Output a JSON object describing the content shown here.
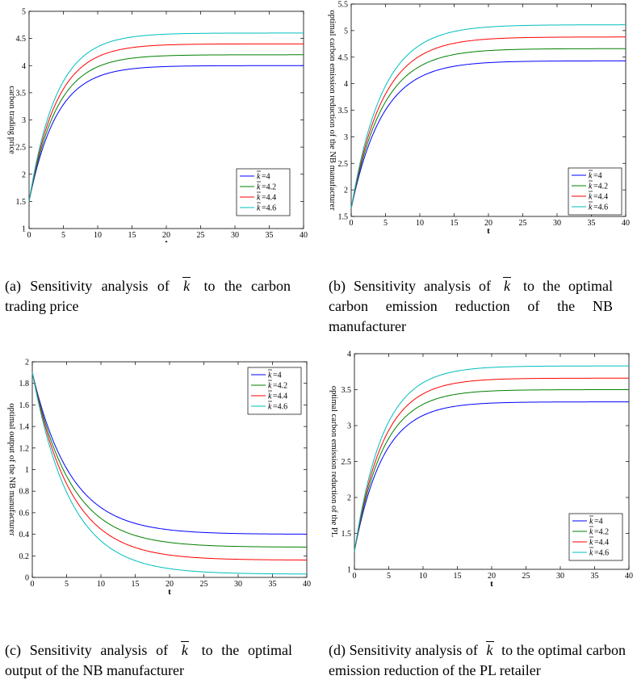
{
  "chart_data": [
    {
      "type": "line",
      "panel": "a",
      "title": "",
      "xlabel": "t",
      "ylabel": "carbon trading price",
      "xlim": [
        0,
        40
      ],
      "ylim": [
        1,
        5
      ],
      "xticks": [
        0,
        5,
        10,
        15,
        20,
        25,
        30,
        35,
        40
      ],
      "xtick_labels": [
        "0",
        "5",
        "10",
        "15",
        "20",
        "25",
        "30",
        "35",
        "40"
      ],
      "yticks": [
        1,
        1.5,
        2,
        2.5,
        3,
        3.5,
        4,
        4.5,
        5
      ],
      "ytick_labels": [
        "1",
        "1.5",
        "2",
        "2.5",
        "3",
        "3.5",
        "4",
        "4.5",
        "5"
      ],
      "legend_position": "bottom-right",
      "rate": 0.25,
      "series": [
        {
          "name": "=4",
          "color": "#0000ff",
          "start": 1.5,
          "end": 4.0
        },
        {
          "name": "=4.2",
          "color": "#008000",
          "start": 1.5,
          "end": 4.2
        },
        {
          "name": "=4.4",
          "color": "#ff0000",
          "start": 1.5,
          "end": 4.4
        },
        {
          "name": "=4.6",
          "color": "#00bfbf",
          "start": 1.5,
          "end": 4.6
        }
      ]
    },
    {
      "type": "line",
      "panel": "b",
      "title": "",
      "xlabel": "t",
      "ylabel": "optimal carbon emission reduction of the NB manufacturer",
      "xlim": [
        0,
        40
      ],
      "ylim": [
        1.5,
        5.5
      ],
      "xticks": [
        0,
        5,
        10,
        15,
        20,
        25,
        30,
        35,
        40
      ],
      "xtick_labels": [
        "0",
        "5",
        "10",
        "15",
        "20",
        "25",
        "30",
        "35",
        "40"
      ],
      "yticks": [
        1.5,
        2,
        2.5,
        3,
        3.5,
        4,
        4.5,
        5,
        5.5
      ],
      "ytick_labels": [
        "1.5",
        "2",
        "2.5",
        "3",
        "3.5",
        "4",
        "4.5",
        "5",
        "5.5"
      ],
      "legend_position": "bottom-right",
      "rate": 0.22,
      "series": [
        {
          "name": "=4",
          "color": "#0000ff",
          "start": 1.65,
          "end": 4.43
        },
        {
          "name": "=4.2",
          "color": "#008000",
          "start": 1.65,
          "end": 4.66
        },
        {
          "name": "=4.4",
          "color": "#ff0000",
          "start": 1.65,
          "end": 4.88
        },
        {
          "name": "=4.6",
          "color": "#00bfbf",
          "start": 1.65,
          "end": 5.11
        }
      ]
    },
    {
      "type": "line",
      "panel": "c",
      "title": "",
      "xlabel": "t",
      "ylabel": "optimal output of the NB manufacturer",
      "xlim": [
        0,
        40
      ],
      "ylim": [
        0,
        2
      ],
      "xticks": [
        0,
        5,
        10,
        15,
        20,
        25,
        30,
        35,
        40
      ],
      "xtick_labels": [
        "0",
        "5",
        "10",
        "15",
        "20",
        "25",
        "30",
        "35",
        "40"
      ],
      "yticks": [
        0,
        0.2,
        0.4,
        0.6,
        0.8,
        1,
        1.2,
        1.4,
        1.6,
        1.8,
        2
      ],
      "ytick_labels": [
        "0",
        "0.2",
        "0.4",
        "0.6",
        "0.8",
        "1",
        "1.2",
        "1.4",
        "1.6",
        "1.8",
        "2"
      ],
      "legend_position": "top-right",
      "rate": 0.18,
      "series": [
        {
          "name": "=4",
          "color": "#0000ff",
          "start": 1.9,
          "end": 0.4
        },
        {
          "name": "=4.2",
          "color": "#008000",
          "start": 1.9,
          "end": 0.28
        },
        {
          "name": "=4.4",
          "color": "#ff0000",
          "start": 1.9,
          "end": 0.16
        },
        {
          "name": "=4.6",
          "color": "#00bfbf",
          "start": 1.9,
          "end": 0.03
        }
      ]
    },
    {
      "type": "line",
      "panel": "d",
      "title": "",
      "xlabel": "t",
      "ylabel": "optimal carbon emission reduction of the PL",
      "xlim": [
        0,
        40
      ],
      "ylim": [
        1,
        4
      ],
      "xticks": [
        0,
        5,
        10,
        15,
        20,
        25,
        30,
        35,
        40
      ],
      "xtick_labels": [
        "0",
        "5",
        "10",
        "15",
        "20",
        "25",
        "30",
        "35",
        "40"
      ],
      "yticks": [
        1,
        1.5,
        2,
        2.5,
        3,
        3.5,
        4
      ],
      "ytick_labels": [
        "1",
        "1.5",
        "2",
        "2.5",
        "3",
        "3.5",
        "4"
      ],
      "legend_position": "bottom-right",
      "rate": 0.24,
      "series": [
        {
          "name": "=4",
          "color": "#0000ff",
          "start": 1.25,
          "end": 3.33
        },
        {
          "name": "=4.2",
          "color": "#008000",
          "start": 1.25,
          "end": 3.5
        },
        {
          "name": "=4.4",
          "color": "#ff0000",
          "start": 1.25,
          "end": 3.66
        },
        {
          "name": "=4.6",
          "color": "#00bfbf",
          "start": 1.25,
          "end": 3.83
        }
      ]
    }
  ],
  "captions": {
    "a": {
      "pre": "(a) Sensitivity analysis of",
      "post": "to the carbon trading price"
    },
    "b": {
      "pre": "(b) Sensitivity analysis of",
      "post": "to the optimal carbon emission reduction of the NB manufacturer"
    },
    "c": {
      "pre": "(c) Sensitivity analysis of",
      "post": "to the optimal output of the NB manufacturer"
    },
    "d": {
      "pre": "(d) Sensitivity analysis of",
      "post": "to the optimal carbon emission reduction of the PL retailer"
    }
  },
  "kbar_symbol": "k"
}
